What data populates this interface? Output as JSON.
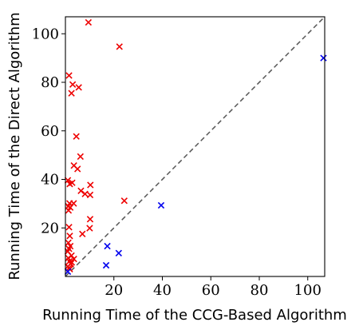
{
  "chart_data": {
    "type": "scatter",
    "title": "",
    "xlabel": "Running Time of the CCG-Based Algorithm",
    "ylabel": "Running Time of the Direct Algorithm",
    "xlim": [
      0,
      107
    ],
    "ylim": [
      0,
      107
    ],
    "x_ticks": [
      "20",
      "40",
      "60",
      "80",
      "100"
    ],
    "y_ticks": [
      "20",
      "40",
      "60",
      "80",
      "100"
    ],
    "grid": false,
    "reference_line": {
      "style": "dashed",
      "color": "#555555",
      "from": [
        0,
        0
      ],
      "to": [
        107,
        107
      ]
    },
    "series": [
      {
        "color": "#ee0000",
        "marker": "x",
        "points": [
          [
            9.5,
            104.7
          ],
          [
            22.3,
            94.7
          ],
          [
            1.5,
            82.8
          ],
          [
            3.0,
            79.1
          ],
          [
            5.5,
            77.9
          ],
          [
            2.5,
            75.5
          ],
          [
            4.5,
            57.7
          ],
          [
            6.2,
            49.4
          ],
          [
            3.5,
            45.7
          ],
          [
            5.0,
            44.3
          ],
          [
            1.0,
            39.6
          ],
          [
            1.8,
            38.1
          ],
          [
            2.8,
            38.6
          ],
          [
            10.3,
            37.7
          ],
          [
            6.4,
            35.3
          ],
          [
            8.1,
            34.0
          ],
          [
            10.2,
            33.6
          ],
          [
            24.3,
            31.2
          ],
          [
            1.7,
            30.1
          ],
          [
            3.4,
            30.1
          ],
          [
            1.2,
            28.9
          ],
          [
            2.0,
            28.4
          ],
          [
            1.3,
            27.2
          ],
          [
            10.2,
            23.6
          ],
          [
            7.0,
            17.5
          ],
          [
            10.0,
            19.9
          ],
          [
            1.5,
            20.3
          ],
          [
            1.8,
            16.7
          ],
          [
            1.2,
            13.9
          ],
          [
            2.0,
            12.5
          ],
          [
            1.5,
            11.4
          ],
          [
            1.0,
            10.3
          ],
          [
            2.5,
            8.6
          ],
          [
            1.2,
            7.6
          ],
          [
            3.5,
            7.2
          ],
          [
            1.6,
            6.2
          ],
          [
            2.2,
            5.2
          ],
          [
            1.0,
            4.1
          ],
          [
            1.5,
            3.5
          ],
          [
            2.6,
            5.8
          ],
          [
            1.8,
            3.0
          ]
        ]
      },
      {
        "color": "#0000ee",
        "marker": "x",
        "points": [
          [
            106.5,
            90.0
          ],
          [
            39.5,
            29.3
          ],
          [
            17.3,
            12.5
          ],
          [
            22.0,
            9.6
          ],
          [
            16.8,
            4.6
          ],
          [
            1.0,
            2.0
          ]
        ]
      }
    ]
  }
}
